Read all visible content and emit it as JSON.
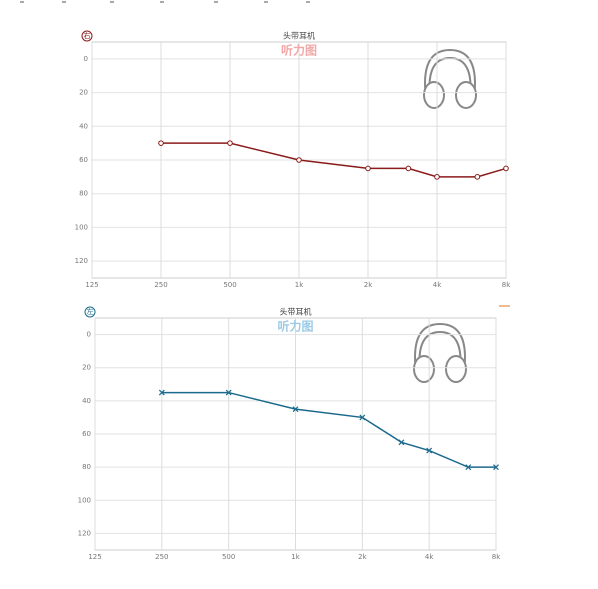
{
  "chart_data": [
    {
      "type": "line",
      "ear": "右",
      "title": "头带耳机",
      "subtitle": "听力图",
      "x": [
        250,
        500,
        1000,
        2000,
        3000,
        4000,
        6000,
        8000
      ],
      "values": [
        50,
        50,
        60,
        65,
        65,
        70,
        70,
        65
      ],
      "color": "#8b1a1a",
      "subtitle_color": "#f2a8a8",
      "marker": "circle",
      "xlim": [
        125,
        8000
      ],
      "x_scale": "log",
      "xticks": [
        125,
        250,
        500,
        {
          "value": 1000,
          "label": "1k"
        },
        {
          "value": 2000,
          "label": "2k"
        },
        {
          "value": 4000,
          "label": "4k"
        },
        {
          "value": 8000,
          "label": "8k"
        }
      ],
      "ylim": [
        -10,
        130
      ],
      "y_inverted": true,
      "yticks": [
        0,
        20,
        40,
        60,
        80,
        100,
        120
      ],
      "grid": true
    },
    {
      "type": "line",
      "ear": "左",
      "title": "头带耳机",
      "subtitle": "听力图",
      "x": [
        250,
        500,
        1000,
        2000,
        3000,
        4000,
        6000,
        8000
      ],
      "values": [
        35,
        35,
        45,
        50,
        65,
        70,
        80,
        80
      ],
      "color": "#1a6a8c",
      "subtitle_color": "#9ccbe6",
      "marker": "cross",
      "xlim": [
        125,
        8000
      ],
      "x_scale": "log",
      "xticks": [
        125,
        250,
        500,
        {
          "value": 1000,
          "label": "1k"
        },
        {
          "value": 2000,
          "label": "2k"
        },
        {
          "value": 4000,
          "label": "4k"
        },
        {
          "value": 8000,
          "label": "8k"
        }
      ],
      "ylim": [
        -10,
        130
      ],
      "y_inverted": true,
      "yticks": [
        0,
        20,
        40,
        60,
        80,
        100,
        120
      ],
      "grid": true
    }
  ]
}
